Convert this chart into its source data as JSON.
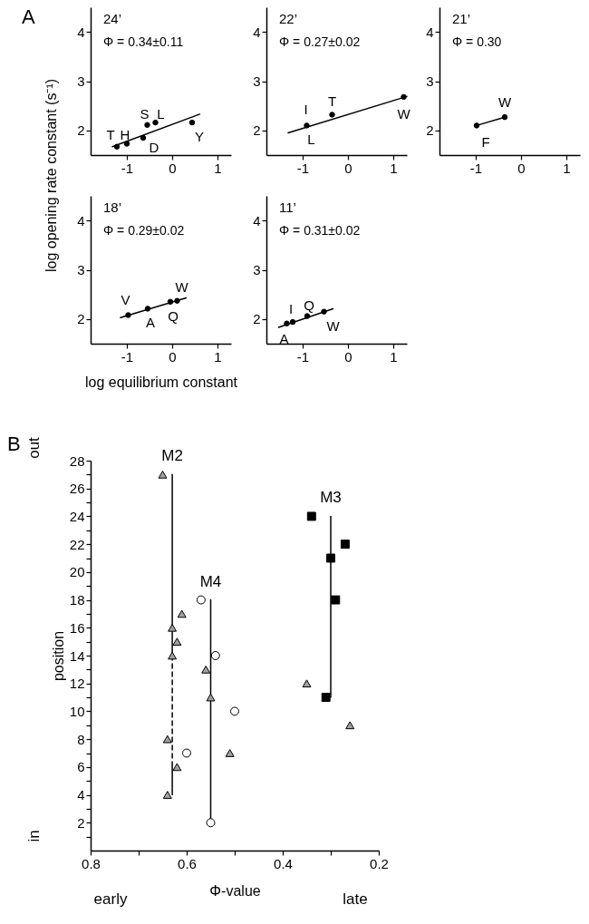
{
  "chart_data": [
    {
      "type": "scatter",
      "title": "24’",
      "subtitle": "Φ = 0.34±0.11",
      "ylabel": "log opening rate constant (s⁻¹)",
      "xlim": [
        -1.8,
        1.3
      ],
      "ylim": [
        1.5,
        4.5
      ],
      "xticks": [
        -1,
        0,
        1
      ],
      "yticks": [
        2,
        3,
        4
      ],
      "series": [
        {
          "marker": "circle",
          "color": "#000000",
          "x": [
            -1.22,
            -1.0,
            -0.64,
            -0.55,
            -0.37,
            0.44
          ],
          "values": [
            1.67,
            1.73,
            1.85,
            2.11,
            2.16,
            2.16
          ]
        },
        {
          "type": "line",
          "marker": "none",
          "line_style": "solid",
          "color": "#000000",
          "x": [
            -1.32,
            0.61
          ],
          "values": [
            1.67,
            2.33
          ]
        }
      ],
      "annotations": [
        "A",
        {
          "text": "T",
          "x": -1.22,
          "y": 1.67
        },
        {
          "text": "H",
          "x": -1.0,
          "y": 1.73
        },
        {
          "text": "S",
          "x": -0.55,
          "y": 2.11
        },
        {
          "text": "L",
          "x": -0.37,
          "y": 2.16
        },
        {
          "text": "D",
          "x": -0.64,
          "y": 1.85
        },
        {
          "text": "Y",
          "x": 0.44,
          "y": 2.16
        }
      ]
    },
    {
      "type": "scatter",
      "title": "22’",
      "subtitle": "Φ = 0.27±0.02",
      "xlim": [
        -1.8,
        1.3
      ],
      "ylim": [
        1.5,
        4.5
      ],
      "xticks": [
        -1,
        0,
        1
      ],
      "yticks": [
        2,
        3,
        4
      ],
      "series": [
        {
          "marker": "circle",
          "color": "#000000",
          "x": [
            -0.91,
            -0.35,
            1.23
          ],
          "values": [
            2.1,
            2.32,
            2.68
          ]
        },
        {
          "type": "line",
          "marker": "none",
          "line_style": "solid",
          "color": "#000000",
          "x": [
            -1.32,
            1.3
          ],
          "values": [
            1.95,
            2.69
          ]
        }
      ],
      "annotations": [
        {
          "text": "I",
          "x": -0.91,
          "y": 2.1
        },
        {
          "text": "T",
          "x": -0.35,
          "y": 2.32
        },
        {
          "text": "W",
          "x": 1.23,
          "y": 2.68
        },
        {
          "text": "L",
          "x": -0.91,
          "y": 2.1
        }
      ]
    },
    {
      "type": "scatter",
      "title": "21’",
      "subtitle": "Φ = 0.30",
      "xlim": [
        -1.8,
        1.3
      ],
      "ylim": [
        1.5,
        4.5
      ],
      "xticks": [
        -1,
        0,
        1
      ],
      "yticks": [
        2,
        3,
        4
      ],
      "series": [
        {
          "marker": "circle",
          "color": "#000000",
          "x": [
            -0.98,
            -0.36
          ],
          "values": [
            2.1,
            2.27
          ]
        },
        {
          "type": "line",
          "marker": "none",
          "line_style": "solid",
          "color": "#000000",
          "x": [
            -0.98,
            -0.36
          ],
          "values": [
            2.1,
            2.27
          ]
        }
      ],
      "annotations": [
        {
          "text": "W",
          "x": -0.36,
          "y": 2.27
        },
        {
          "text": "F",
          "x": -0.98,
          "y": 2.1
        }
      ]
    },
    {
      "type": "scatter",
      "title": "18’",
      "subtitle": "Φ = 0.29±0.02",
      "xlabel": "log equilibrium constant",
      "xlim": [
        -1.8,
        1.3
      ],
      "ylim": [
        1.5,
        4.5
      ],
      "xticks": [
        -1,
        0,
        1
      ],
      "yticks": [
        2,
        3,
        4
      ],
      "series": [
        {
          "marker": "circle",
          "color": "#000000",
          "x": [
            -0.97,
            -0.54,
            -0.04,
            0.11
          ],
          "values": [
            2.08,
            2.21,
            2.35,
            2.37
          ]
        },
        {
          "type": "line",
          "marker": "none",
          "line_style": "solid",
          "color": "#000000",
          "x": [
            -1.14,
            0.31
          ],
          "values": [
            2.03,
            2.43
          ]
        }
      ],
      "annotations": [
        {
          "text": "V",
          "x": -0.97,
          "y": 2.08
        },
        {
          "text": "A",
          "x": -0.54,
          "y": 2.21
        },
        {
          "text": "Q",
          "x": -0.04,
          "y": 2.35
        },
        {
          "text": "W",
          "x": 0.11,
          "y": 2.37
        }
      ]
    },
    {
      "type": "scatter",
      "title": "11’",
      "subtitle": "Φ = 0.31±0.02",
      "xlim": [
        -1.8,
        1.3
      ],
      "ylim": [
        1.5,
        4.5
      ],
      "xticks": [
        -1,
        0,
        1
      ],
      "yticks": [
        2,
        3,
        4
      ],
      "series": [
        {
          "marker": "circle",
          "color": "#000000",
          "x": [
            -1.35,
            -1.22,
            -0.9,
            -0.53
          ],
          "values": [
            1.91,
            1.94,
            2.06,
            2.15
          ]
        },
        {
          "type": "line",
          "marker": "none",
          "line_style": "solid",
          "color": "#000000",
          "x": [
            -1.53,
            -0.33
          ],
          "values": [
            1.83,
            2.21
          ]
        }
      ],
      "annotations": [
        {
          "text": "I",
          "x": -1.22,
          "y": 1.94
        },
        {
          "text": "Q",
          "x": -0.9,
          "y": 2.06
        },
        {
          "text": "A",
          "x": -1.35,
          "y": 1.91
        },
        {
          "text": "W",
          "x": -0.53,
          "y": 2.15
        }
      ]
    },
    {
      "type": "scatter",
      "xlabel": "Φ-value",
      "ylabel": "position",
      "xlim": [
        0.8,
        0.2
      ],
      "ylim": [
        0,
        28
      ],
      "xticks": [
        0.8,
        {
          "value": 0.7,
          "label": null
        },
        0.6,
        {
          "value": 0.5,
          "label": null
        },
        0.4,
        {
          "value": 0.3,
          "label": null
        },
        0.2
      ],
      "yticks": [
        {
          "value": 1,
          "label": null
        },
        2,
        {
          "value": 3,
          "label": null
        },
        4,
        {
          "value": 5,
          "label": null
        },
        6,
        {
          "value": 7,
          "label": null
        },
        8,
        {
          "value": 9,
          "label": null
        },
        10,
        {
          "value": 11,
          "label": null
        },
        12,
        {
          "value": 13,
          "label": null
        },
        14,
        {
          "value": 15,
          "label": null
        },
        16,
        {
          "value": 17,
          "label": null
        },
        18,
        {
          "value": 19,
          "label": null
        },
        20,
        {
          "value": 21,
          "label": null
        },
        22,
        {
          "value": 23,
          "label": null
        },
        24,
        {
          "value": 25,
          "label": null
        },
        26,
        {
          "value": 27,
          "label": null
        },
        28
      ],
      "series": [
        {
          "type": "line",
          "name": "M2",
          "marker": "none",
          "line_style": "solid",
          "color": "#000000",
          "x": [
            0.63,
            0.63
          ],
          "values": [
            27,
            14
          ]
        },
        {
          "type": "line",
          "marker": "none",
          "line_style": "dashed",
          "color": "#000000",
          "x": [
            0.63,
            0.63
          ],
          "values": [
            14,
            6
          ]
        },
        {
          "type": "line",
          "marker": "none",
          "line_style": "solid",
          "color": "#000000",
          "x": [
            0.63,
            0.63
          ],
          "values": [
            6,
            4
          ]
        },
        {
          "type": "line",
          "name": "M4",
          "marker": "none",
          "line_style": "solid",
          "color": "#000000",
          "x": [
            0.55,
            0.55
          ],
          "values": [
            18,
            2
          ]
        },
        {
          "type": "line",
          "name": "M3",
          "marker": "none",
          "line_style": "solid",
          "color": "#000000",
          "x": [
            0.3,
            0.3
          ],
          "values": [
            24,
            11
          ]
        },
        {
          "marker": "triangle",
          "color": "#a0a0a0",
          "x": [
            0.65,
            0.61,
            0.63,
            0.62,
            0.63,
            0.56,
            0.55,
            0.35,
            0.26,
            0.64,
            0.51,
            0.62,
            0.64
          ],
          "values": [
            27,
            17,
            16,
            15,
            14,
            13,
            11,
            12,
            9,
            8,
            7,
            6,
            4
          ]
        },
        {
          "marker": "circle",
          "color": "#ffffff",
          "x": [
            0.57,
            0.54,
            0.5,
            0.6,
            0.55
          ],
          "values": [
            18,
            14,
            10,
            7,
            2
          ]
        },
        {
          "marker": "square",
          "color": "#000000",
          "x": [
            0.34,
            0.27,
            0.3,
            0.29,
            0.31
          ],
          "values": [
            24,
            22,
            21,
            18,
            11
          ]
        }
      ],
      "annotations": [
        "B",
        "out",
        "in",
        "early",
        "late"
      ]
    }
  ]
}
